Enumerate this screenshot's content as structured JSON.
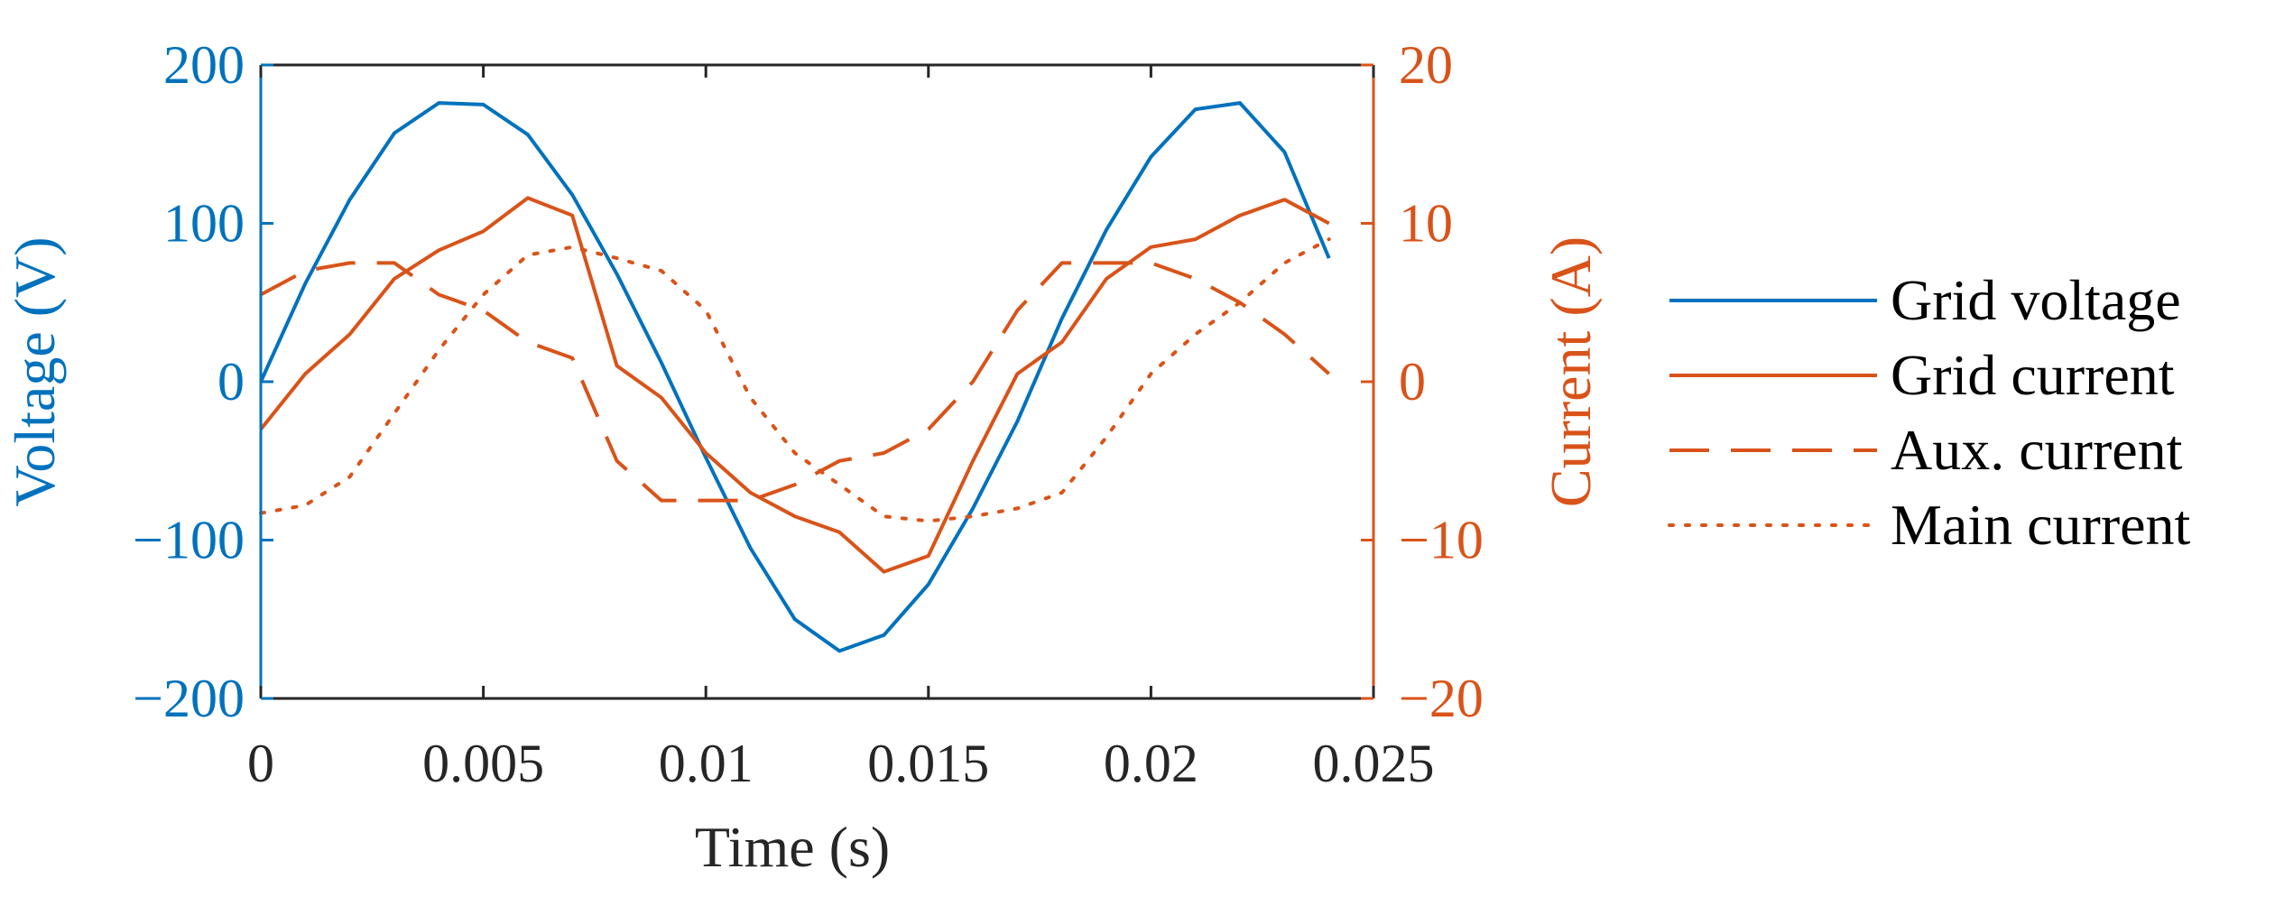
{
  "chart_data": {
    "type": "line",
    "title": "",
    "xlabel": "Time (s)",
    "ylabel_left": "Voltage (V)",
    "ylabel_right": "Current (A)",
    "xlim": [
      0,
      0.025
    ],
    "ylim_left": [
      -200,
      200
    ],
    "ylim_right": [
      -20,
      20
    ],
    "grid": false,
    "legend_position": "outside-right",
    "colors": {
      "left_axis": "#0072BD",
      "right_axis": "#D95319",
      "frame": "#262626"
    },
    "x_ticks": [
      {
        "value": 0,
        "label": "0"
      },
      {
        "value": 0.005,
        "label": "0.005"
      },
      {
        "value": 0.01,
        "label": "0.01"
      },
      {
        "value": 0.015,
        "label": "0.015"
      },
      {
        "value": 0.02,
        "label": "0.02"
      },
      {
        "value": 0.025,
        "label": "0.025"
      }
    ],
    "y_ticks_left": [
      {
        "value": 200,
        "label": "200"
      },
      {
        "value": 100,
        "label": "100"
      },
      {
        "value": 0,
        "label": "0"
      },
      {
        "value": -100,
        "label": "−100"
      },
      {
        "value": -200,
        "label": "−200"
      }
    ],
    "y_ticks_right": [
      {
        "value": 20,
        "label": "20"
      },
      {
        "value": 10,
        "label": "10"
      },
      {
        "value": 0,
        "label": "0"
      },
      {
        "value": -10,
        "label": "−10"
      },
      {
        "value": -20,
        "label": "−20"
      }
    ],
    "series": [
      {
        "name": "Grid voltage",
        "axis": "left",
        "color": "#0072BD",
        "dash": "solid",
        "x": [
          0,
          0.001,
          0.002,
          0.003,
          0.004,
          0.005,
          0.006,
          0.007,
          0.008,
          0.009,
          0.01,
          0.011,
          0.012,
          0.013,
          0.014,
          0.015,
          0.016,
          0.017,
          0.018,
          0.019,
          0.02,
          0.021,
          0.022,
          0.023,
          0.024
        ],
        "y": [
          0,
          62,
          115,
          157,
          176,
          175,
          156,
          118,
          68,
          12,
          -48,
          -105,
          -150,
          -170,
          -160,
          -128,
          -80,
          -25,
          40,
          96,
          142,
          172,
          176,
          145,
          78
        ]
      },
      {
        "name": "Grid current",
        "axis": "right",
        "color": "#D95319",
        "dash": "solid",
        "x": [
          0,
          0.001,
          0.002,
          0.003,
          0.004,
          0.005,
          0.006,
          0.007,
          0.008,
          0.009,
          0.01,
          0.011,
          0.012,
          0.013,
          0.014,
          0.015,
          0.016,
          0.017,
          0.018,
          0.019,
          0.02,
          0.021,
          0.022,
          0.023,
          0.024
        ],
        "y": [
          -3,
          0.5,
          3,
          6.5,
          8.3,
          9.5,
          11.6,
          10.5,
          1,
          -1,
          -4.5,
          -7,
          -8.5,
          -9.5,
          -12,
          -11,
          -5,
          0.5,
          2.5,
          6.5,
          8.5,
          9,
          10.5,
          11.5,
          10
        ]
      },
      {
        "name": "Aux. current",
        "axis": "right",
        "color": "#D95319",
        "dash": "dashed",
        "x": [
          0,
          0.001,
          0.002,
          0.003,
          0.004,
          0.005,
          0.006,
          0.007,
          0.008,
          0.009,
          0.01,
          0.011,
          0.012,
          0.013,
          0.014,
          0.015,
          0.016,
          0.017,
          0.018,
          0.019,
          0.02,
          0.021,
          0.022,
          0.023,
          0.024
        ],
        "y": [
          5.5,
          7,
          7.5,
          7.5,
          5.5,
          4.5,
          2.5,
          1.5,
          -5,
          -7.5,
          -7.5,
          -7.5,
          -6.5,
          -5,
          -4.5,
          -3,
          0,
          4.5,
          7.5,
          7.5,
          7.5,
          6.5,
          5,
          3,
          0.5
        ]
      },
      {
        "name": "Main current",
        "axis": "right",
        "color": "#D95319",
        "dash": "dotted",
        "x": [
          0,
          0.001,
          0.002,
          0.003,
          0.004,
          0.005,
          0.006,
          0.007,
          0.008,
          0.009,
          0.01,
          0.011,
          0.012,
          0.013,
          0.014,
          0.015,
          0.016,
          0.017,
          0.018,
          0.019,
          0.02,
          0.021,
          0.022,
          0.023,
          0.024
        ],
        "y": [
          -8.3,
          -7.8,
          -6,
          -2,
          2,
          5.5,
          8,
          8.5,
          7.8,
          7,
          4.5,
          -1,
          -4.5,
          -6.5,
          -8.5,
          -8.8,
          -8.5,
          -8,
          -7,
          -3.5,
          0.5,
          3,
          5,
          7.5,
          9
        ]
      }
    ]
  }
}
